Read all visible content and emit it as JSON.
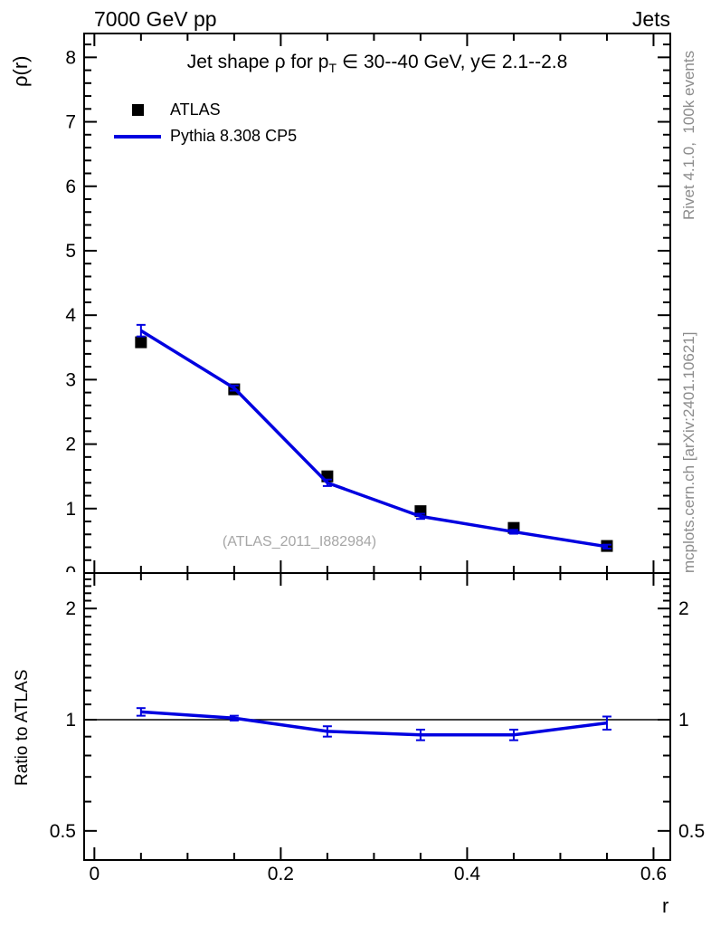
{
  "header": {
    "left": "7000 GeV pp",
    "right": "Jets"
  },
  "main_panel": {
    "title_parts": {
      "prefix": "Jet shape ρ for p",
      "subscript": "T",
      "suffix": " ∈ 30--40 GeV, y∈ 2.1--2.8"
    },
    "ylabel": "ρ(r)",
    "watermark": "(ATLAS_2011_I882984)"
  },
  "ratio_panel": {
    "ylabel": "Ratio to ATLAS"
  },
  "xlabel": "r",
  "legend": {
    "entries": [
      {
        "label": "ATLAS",
        "marker": "square",
        "color": "#000000"
      },
      {
        "label": "Pythia 8.308 CP5",
        "marker": "line",
        "color": "#0000e0"
      }
    ]
  },
  "side_notes": {
    "top_rotated": "Rivet 4.1.0,  100k events",
    "bottom_rotated": "mcplots.cern.ch [arXiv:2401.10621]"
  },
  "colors": {
    "mc_blue": "#0000e0",
    "data_black": "#000000",
    "note_gray": "#8c8c8c",
    "watermark_gray": "#a6a6a6"
  },
  "chart_data": [
    {
      "type": "line",
      "panel": "main",
      "title": "Jet shape ρ for p_T ∈ 30--40 GeV, y∈ 2.1--2.8",
      "xlabel": "r",
      "ylabel": "ρ(r)",
      "x": [
        0.05,
        0.15,
        0.25,
        0.35,
        0.45,
        0.55
      ],
      "series": [
        {
          "name": "ATLAS",
          "style": "marker-square",
          "color": "#000000",
          "values": [
            3.58,
            2.85,
            1.5,
            0.96,
            0.7,
            0.42
          ]
        },
        {
          "name": "Pythia 8.308 CP5",
          "style": "line-errorbar",
          "color": "#0000e0",
          "values": [
            3.76,
            2.87,
            1.4,
            0.88,
            0.64,
            0.41
          ],
          "yerr": [
            0.09,
            0.04,
            0.05,
            0.04,
            0.03,
            0.03
          ]
        }
      ],
      "xlim": [
        -0.011,
        0.618
      ],
      "ylim": [
        0,
        8.37
      ],
      "yscale": "linear",
      "grid": false,
      "legend_position": "top-left-inside",
      "xticks_major": [
        0,
        0.2,
        0.4,
        0.6
      ],
      "xtick_labels": [
        "0",
        "0.2",
        "0.4",
        "0.6"
      ],
      "xtick_minor_step": 0.05,
      "yticks_major": [
        0,
        1,
        2,
        3,
        4,
        5,
        6,
        7,
        8
      ],
      "ytick_labels": [
        "0",
        "1",
        "2",
        "3",
        "4",
        "5",
        "6",
        "7",
        "8"
      ],
      "ytick_minor_step": 0.2
    },
    {
      "type": "line",
      "panel": "ratio",
      "ylabel": "Ratio to ATLAS",
      "x": [
        0.05,
        0.15,
        0.25,
        0.35,
        0.45,
        0.55
      ],
      "series": [
        {
          "name": "Pythia 8.308 CP5 / ATLAS",
          "style": "line-errorbar",
          "color": "#0000e0",
          "values": [
            1.05,
            1.01,
            0.93,
            0.91,
            0.91,
            0.98
          ],
          "yerr": [
            0.025,
            0.015,
            0.03,
            0.03,
            0.03,
            0.04
          ]
        }
      ],
      "xlim": [
        -0.011,
        0.618
      ],
      "ylim": [
        0.417,
        2.495
      ],
      "yscale": "log",
      "grid": false,
      "refline": 1,
      "xticks_major": [
        0,
        0.2,
        0.4,
        0.6
      ],
      "xtick_labels": [
        "0",
        "0.2",
        "0.4",
        "0.6"
      ],
      "xtick_minor_step": 0.05,
      "yticks_major": [
        0.5,
        1,
        2
      ],
      "ytick_labels": [
        "0.5",
        "1",
        "2"
      ],
      "yticks_minor": [
        0.6,
        0.7,
        0.8,
        0.9,
        1.1,
        1.2,
        1.3,
        1.4,
        1.5,
        1.6,
        1.7,
        1.8,
        1.9,
        2.1,
        2.2,
        2.3,
        2.4
      ]
    }
  ]
}
